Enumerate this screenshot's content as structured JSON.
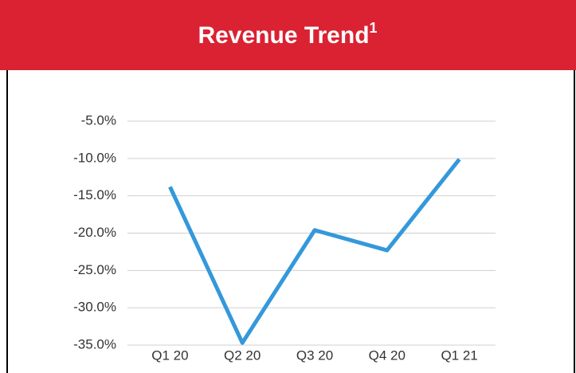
{
  "chart_data": {
    "type": "line",
    "title": "Revenue Trend",
    "title_footnote": "1",
    "categories": [
      "Q1 20",
      "Q2 20",
      "Q3 20",
      "Q4 20",
      "Q1 21"
    ],
    "series": [
      {
        "name": "Revenue",
        "color": "#3498db",
        "values": [
          -13.8,
          -34.7,
          -19.6,
          -22.3,
          -10.1
        ]
      }
    ],
    "ylim": [
      -35,
      -5
    ],
    "yticks": [
      {
        "value": -5,
        "label": "-5.0%"
      },
      {
        "value": -10,
        "label": "-10.0%"
      },
      {
        "value": -15,
        "label": "-15.0%"
      },
      {
        "value": -20,
        "label": "-20.0%"
      },
      {
        "value": -25,
        "label": "-25.0%"
      },
      {
        "value": -30,
        "label": "-30.0%"
      },
      {
        "value": -35,
        "label": "-35.0%"
      }
    ],
    "grid": true
  }
}
